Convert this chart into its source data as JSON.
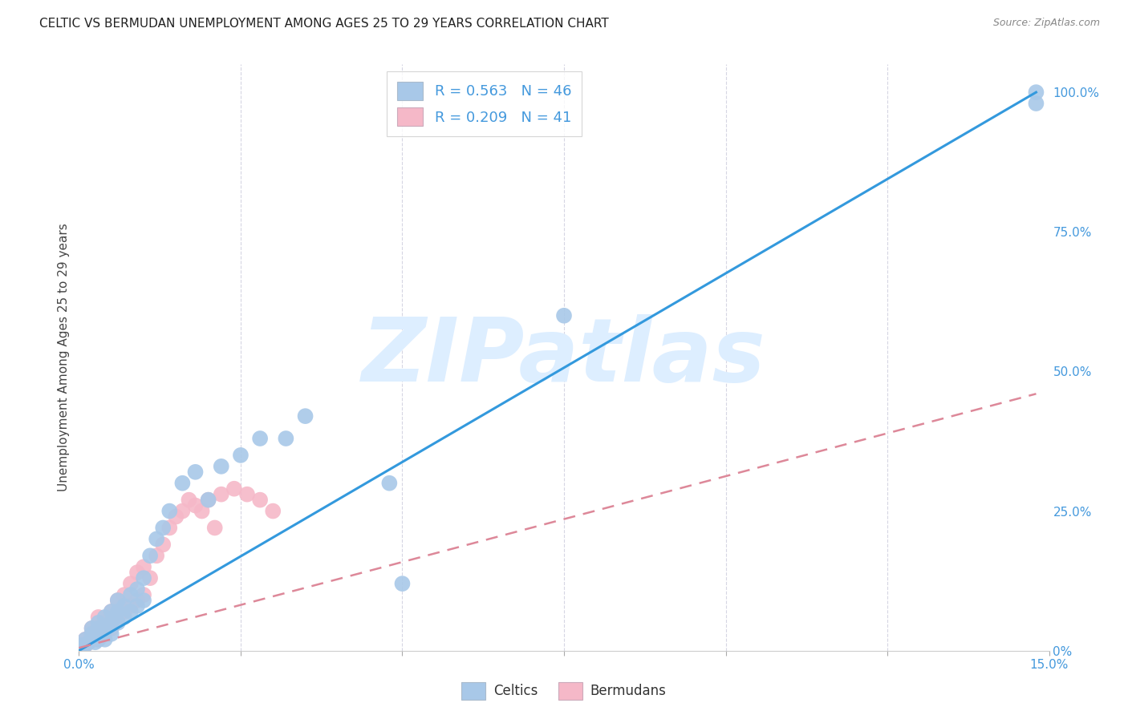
{
  "title": "CELTIC VS BERMUDAN UNEMPLOYMENT AMONG AGES 25 TO 29 YEARS CORRELATION CHART",
  "source": "Source: ZipAtlas.com",
  "ylabel": "Unemployment Among Ages 25 to 29 years",
  "xlim": [
    0.0,
    0.15
  ],
  "ylim": [
    0.0,
    1.05
  ],
  "xtick_positions": [
    0.0,
    0.025,
    0.05,
    0.075,
    0.1,
    0.125,
    0.15
  ],
  "xtick_labels": [
    "0.0%",
    "",
    "",
    "",
    "",
    "",
    "15.0%"
  ],
  "ytick_vals_right": [
    0.0,
    0.25,
    0.5,
    0.75,
    1.0
  ],
  "ytick_labels_right": [
    "0%",
    "25.0%",
    "50.0%",
    "75.0%",
    "100.0%"
  ],
  "celtic_color": "#a8c8e8",
  "bermudan_color": "#f5b8c8",
  "celtic_line_color": "#3399dd",
  "bermudan_line_color": "#dd8899",
  "watermark_text": "ZIPatlas",
  "watermark_color": "#ddeeff",
  "title_fontsize": 11,
  "source_fontsize": 9,
  "axis_label_color": "#4499dd",
  "legend_r1": "0.563",
  "legend_n1": "46",
  "legend_r2": "0.209",
  "legend_n2": "41",
  "celtic_scatter_x": [
    0.0005,
    0.001,
    0.001,
    0.0015,
    0.002,
    0.002,
    0.002,
    0.0025,
    0.003,
    0.003,
    0.003,
    0.003,
    0.004,
    0.004,
    0.004,
    0.005,
    0.005,
    0.005,
    0.006,
    0.006,
    0.006,
    0.007,
    0.007,
    0.008,
    0.008,
    0.009,
    0.009,
    0.01,
    0.01,
    0.011,
    0.012,
    0.013,
    0.014,
    0.016,
    0.018,
    0.02,
    0.022,
    0.025,
    0.028,
    0.032,
    0.035,
    0.048,
    0.05,
    0.075,
    0.148,
    0.148
  ],
  "celtic_scatter_y": [
    0.01,
    0.01,
    0.02,
    0.015,
    0.02,
    0.03,
    0.04,
    0.015,
    0.02,
    0.03,
    0.04,
    0.05,
    0.02,
    0.04,
    0.06,
    0.03,
    0.05,
    0.07,
    0.05,
    0.07,
    0.09,
    0.06,
    0.08,
    0.07,
    0.1,
    0.08,
    0.11,
    0.09,
    0.13,
    0.17,
    0.2,
    0.22,
    0.25,
    0.3,
    0.32,
    0.27,
    0.33,
    0.35,
    0.38,
    0.38,
    0.42,
    0.3,
    0.12,
    0.6,
    0.98,
    1.0
  ],
  "bermudan_scatter_x": [
    0.0003,
    0.0005,
    0.001,
    0.001,
    0.0015,
    0.002,
    0.002,
    0.002,
    0.003,
    0.003,
    0.003,
    0.004,
    0.004,
    0.005,
    0.005,
    0.006,
    0.006,
    0.007,
    0.007,
    0.008,
    0.008,
    0.009,
    0.009,
    0.01,
    0.01,
    0.011,
    0.012,
    0.013,
    0.014,
    0.015,
    0.016,
    0.017,
    0.018,
    0.019,
    0.02,
    0.021,
    0.022,
    0.024,
    0.026,
    0.028,
    0.03
  ],
  "bermudan_scatter_y": [
    0.005,
    0.01,
    0.01,
    0.02,
    0.015,
    0.02,
    0.03,
    0.04,
    0.02,
    0.04,
    0.06,
    0.03,
    0.05,
    0.04,
    0.07,
    0.06,
    0.09,
    0.07,
    0.1,
    0.08,
    0.12,
    0.09,
    0.14,
    0.1,
    0.15,
    0.13,
    0.17,
    0.19,
    0.22,
    0.24,
    0.25,
    0.27,
    0.26,
    0.25,
    0.27,
    0.22,
    0.28,
    0.29,
    0.28,
    0.27,
    0.25
  ],
  "celtic_line_x": [
    0.0,
    0.148
  ],
  "celtic_line_y": [
    0.0,
    1.0
  ],
  "bermudan_line_x": [
    0.0,
    0.148
  ],
  "bermudan_line_y": [
    0.005,
    0.46
  ]
}
